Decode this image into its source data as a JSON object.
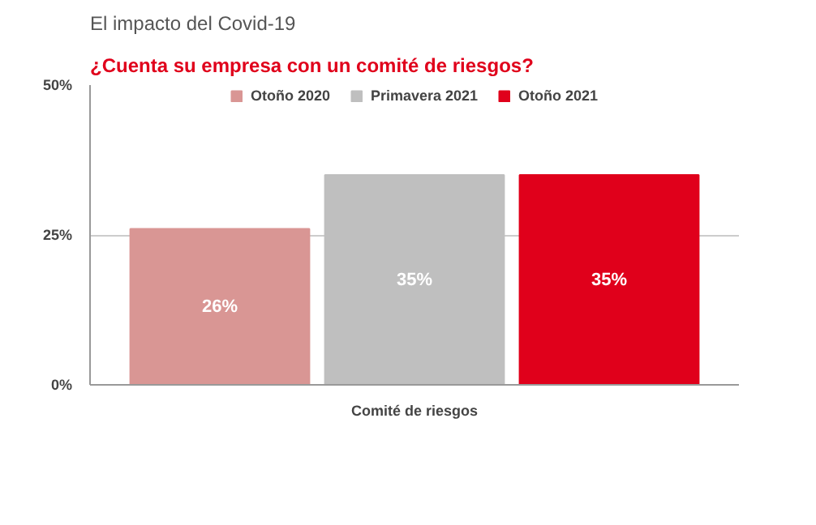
{
  "chart_data": {
    "type": "bar",
    "title": "El impacto del Covid-19",
    "subtitle": "¿Cuenta su empresa con un comité de riesgos?",
    "categories": [
      "Comité de riesgos"
    ],
    "series": [
      {
        "name": "Otoño 2020",
        "color": "#d99694",
        "values": [
          26
        ]
      },
      {
        "name": "Primavera 2021",
        "color": "#bfbfbf",
        "values": [
          35
        ]
      },
      {
        "name": "Otoño 2021",
        "color": "#e0001b",
        "values": [
          35
        ]
      }
    ],
    "ylim": [
      0,
      50
    ],
    "yticks": [
      {
        "value": 0,
        "label": "0%"
      },
      {
        "value": 25,
        "label": "25%"
      },
      {
        "value": 50,
        "label": "50%"
      }
    ],
    "grid": "y",
    "legend": "top",
    "value_labels": [
      [
        "26%"
      ],
      [
        "35%"
      ],
      [
        "35%"
      ]
    ]
  }
}
